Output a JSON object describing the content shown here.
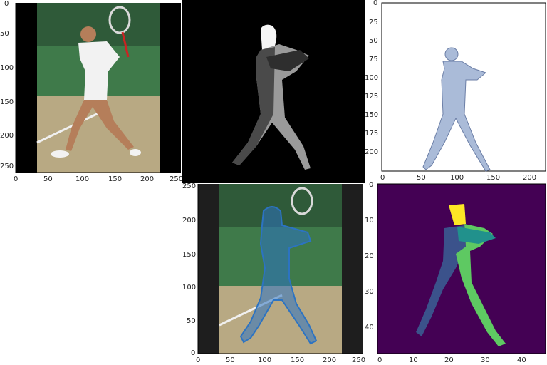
{
  "colors": {
    "axis": "#000000",
    "grass_court": "#3f7a4a",
    "clay_ground": "#b8a983",
    "background_dark": "#000000",
    "background_white": "#ffffff",
    "mesh_blue": "#aabbd8",
    "dots_blue": "#2c73c2",
    "heatmap_bg": "#440154",
    "heatmap_low": "#3b528b",
    "heatmap_mid": "#21918c",
    "heatmap_high": "#5ec962",
    "heatmap_top": "#fde725"
  },
  "panels": {
    "photo": {
      "y_ticks": [
        "0",
        "50",
        "100",
        "150",
        "200",
        "250"
      ],
      "x_ticks": [
        "0",
        "50",
        "100",
        "150",
        "200",
        "250"
      ]
    },
    "mesh": {
      "y_ticks": [
        "0",
        "25",
        "50",
        "75",
        "100",
        "125",
        "150",
        "175",
        "200"
      ],
      "x_ticks": [
        "0",
        "50",
        "100",
        "150",
        "200"
      ]
    },
    "overlay": {
      "y_ticks": [
        "250",
        "200",
        "150",
        "100",
        "50",
        "0"
      ],
      "x_ticks": [
        "0",
        "50",
        "100",
        "150",
        "200",
        "250"
      ]
    },
    "heatmap": {
      "y_ticks": [
        "0",
        "10",
        "20",
        "30",
        "40"
      ],
      "x_ticks": [
        "0",
        "10",
        "20",
        "30",
        "40"
      ]
    }
  }
}
